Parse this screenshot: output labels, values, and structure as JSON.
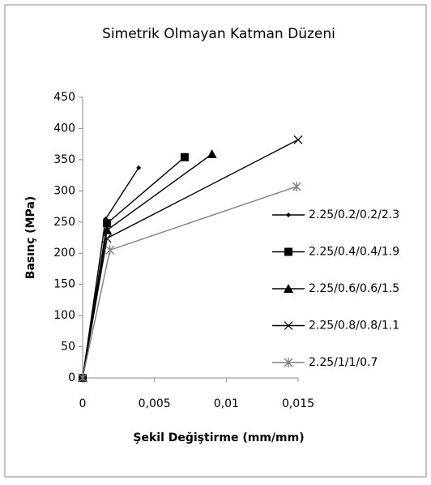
{
  "chart_data": {
    "type": "line",
    "title": "Simetrik Olmayan Katman Düzeni",
    "x_label": "Şekil Değiştirme (mm/mm)",
    "y_label": "Basınç (MPa)",
    "xlim": [
      0,
      0.015
    ],
    "xticks": [
      0,
      {
        "value": 0.005,
        "label": "0,005"
      },
      {
        "value": 0.01,
        "label": "0,01"
      },
      {
        "value": 0.015,
        "label": "0,015"
      }
    ],
    "ylim": [
      0,
      450
    ],
    "yticks": [
      0,
      50,
      100,
      150,
      200,
      250,
      300,
      350,
      400,
      450
    ],
    "grid": false,
    "legend": "right",
    "series": [
      {
        "name": "2.25/0.2/0.2/2.3",
        "color": "#000000",
        "marker": "diamond",
        "x": [
          0,
          0.0016,
          0.0039
        ],
        "values": [
          0,
          255,
          337
        ]
      },
      {
        "name": "2.25/0.4/0.4/1.9",
        "color": "#000000",
        "marker": "square",
        "x": [
          0,
          0.0017,
          0.0071
        ],
        "values": [
          0,
          248,
          354
        ]
      },
      {
        "name": "2.25/0.6/0.6/1.5",
        "color": "#000000",
        "marker": "triangle",
        "x": [
          0,
          0.0017,
          0.009
        ],
        "values": [
          0,
          237,
          359
        ]
      },
      {
        "name": "2.25/0.8/0.8/1.1",
        "color": "#000000",
        "marker": "x",
        "x": [
          0,
          0.0017,
          0.015
        ],
        "values": [
          0,
          224,
          382
        ]
      },
      {
        "name": "2.25/1/1/0.7",
        "color": "#808080",
        "marker": "star",
        "x": [
          0,
          0.0019,
          0.0149
        ],
        "values": [
          0,
          205,
          307
        ]
      }
    ]
  }
}
